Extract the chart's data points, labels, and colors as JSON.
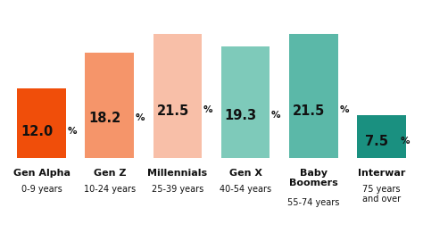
{
  "categories": [
    "Gen Alpha",
    "Gen Z",
    "Millennials",
    "Gen X",
    "Baby\nBoomers",
    "Interwar"
  ],
  "sublabels": [
    "0-9 years",
    "10-24 years",
    "25-39 years",
    "40-54 years",
    "55-74 years",
    "75 years\nand over"
  ],
  "values": [
    12.0,
    18.2,
    21.5,
    19.3,
    21.5,
    7.5
  ],
  "bar_colors": [
    "#F04E0A",
    "#F5956A",
    "#F8BFA8",
    "#7ECABA",
    "#5BB8A8",
    "#1A9080"
  ],
  "background_color": "#ffffff",
  "bar_width": 0.72,
  "ylim": [
    0,
    24.5
  ],
  "value_fontsize": 10.5,
  "pct_fontsize": 7.5,
  "cat_fontsize": 8.0,
  "sub_fontsize": 7.0,
  "label_color": "#111111"
}
